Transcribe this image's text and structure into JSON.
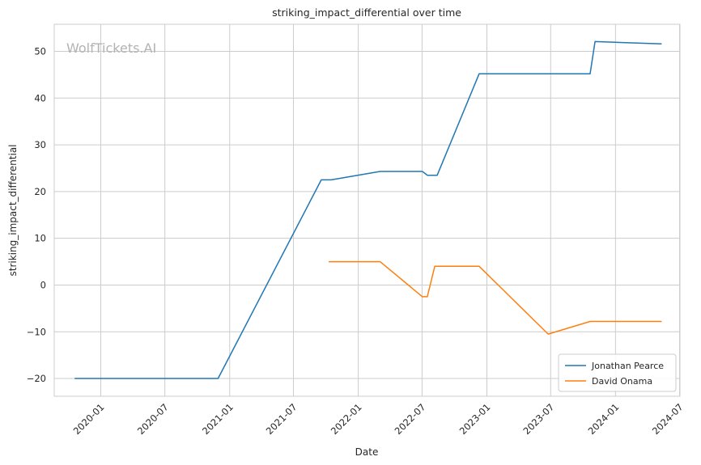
{
  "watermark": "WolfTickets.AI",
  "chart_data": {
    "type": "line",
    "title": "striking_impact_differential over time",
    "xlabel": "Date",
    "ylabel": "striking_impact_differential",
    "x_type": "date",
    "xlim": [
      "2019-08-22",
      "2024-07-02"
    ],
    "ylim": [
      -23.8,
      55.8
    ],
    "x_ticks": [
      "2020-01",
      "2020-07",
      "2021-01",
      "2021-07",
      "2022-01",
      "2022-07",
      "2023-01",
      "2023-07",
      "2024-01",
      "2024-07"
    ],
    "x_tick_dates": [
      "2020-01-01",
      "2020-07-01",
      "2021-01-01",
      "2021-07-01",
      "2022-01-01",
      "2022-07-01",
      "2023-01-01",
      "2023-07-01",
      "2024-01-01",
      "2024-07-01"
    ],
    "y_ticks": [
      -20,
      -10,
      0,
      10,
      20,
      30,
      40,
      50
    ],
    "y_tick_labels": [
      "−20",
      "−10",
      "0",
      "10",
      "20",
      "30",
      "40",
      "50"
    ],
    "grid": true,
    "legend_position": "bottom-right",
    "series": [
      {
        "name": "Jonathan Pearce",
        "color": "#1f77b4",
        "points": [
          [
            "2019-10-19",
            -20.0
          ],
          [
            "2020-11-29",
            -20.0
          ],
          [
            "2021-09-18",
            22.5
          ],
          [
            "2021-10-16",
            22.5
          ],
          [
            "2022-03-04",
            24.3
          ],
          [
            "2022-07-02",
            24.3
          ],
          [
            "2022-07-16",
            23.5
          ],
          [
            "2022-08-13",
            23.5
          ],
          [
            "2022-12-10",
            45.2
          ],
          [
            "2023-10-21",
            45.2
          ],
          [
            "2023-11-04",
            52.1
          ],
          [
            "2024-05-11",
            51.6
          ]
        ]
      },
      {
        "name": "David Onama",
        "color": "#ff7f0e",
        "points": [
          [
            "2021-10-09",
            5.0
          ],
          [
            "2022-03-04",
            5.0
          ],
          [
            "2022-07-02",
            -2.5
          ],
          [
            "2022-07-16",
            -2.5
          ],
          [
            "2022-08-06",
            4.0
          ],
          [
            "2022-12-10",
            4.0
          ],
          [
            "2023-06-24",
            -10.5
          ],
          [
            "2023-10-21",
            -7.8
          ],
          [
            "2024-05-11",
            -7.8
          ]
        ]
      }
    ]
  }
}
